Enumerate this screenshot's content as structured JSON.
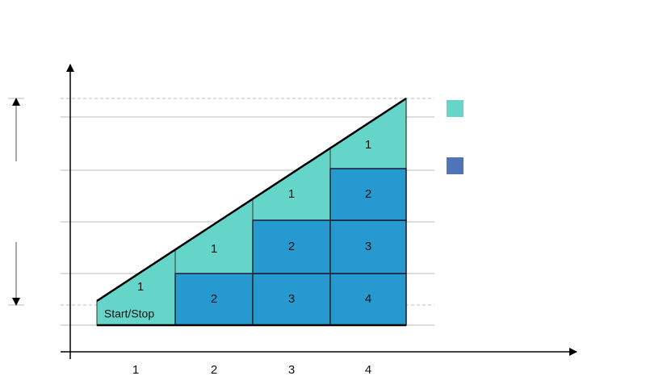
{
  "x_axis": {
    "labels": [
      "1",
      "2",
      "3",
      "4"
    ]
  },
  "columns": [
    {
      "cells": [
        "1",
        "Start/Stop"
      ]
    },
    {
      "cells": [
        "1",
        "2"
      ]
    },
    {
      "cells": [
        "1",
        "2",
        "3"
      ]
    },
    {
      "cells": [
        "1",
        "2",
        "3",
        "4"
      ]
    }
  ]
}
